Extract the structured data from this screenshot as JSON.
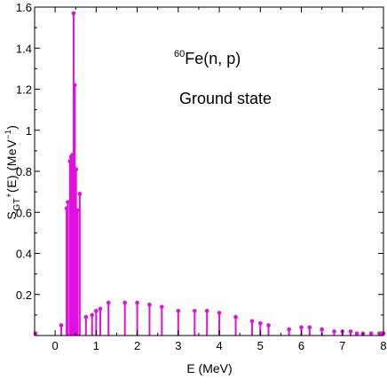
{
  "chart_data": {
    "type": "stem",
    "title": "",
    "annotation": {
      "isotope_mass": "60",
      "reaction": "Fe(n, p)",
      "state": "Ground state"
    },
    "xlabel": "E (MeV)",
    "ylabel_main": "S",
    "ylabel_sub": "GT",
    "ylabel_sup": "+",
    "ylabel_tail": "(E) (MeV",
    "ylabel_exp": "−1",
    "ylabel_end": ")",
    "xlim": [
      -0.5,
      8
    ],
    "ylim": [
      0,
      1.6
    ],
    "xticks": [
      0,
      1,
      2,
      3,
      4,
      5,
      6,
      7,
      8
    ],
    "xtick_labels": [
      "0",
      "1",
      "2",
      "3",
      "4",
      "5",
      "6",
      "7",
      "8"
    ],
    "yticks": [
      0.2,
      0.4,
      0.6,
      0.8,
      1.0,
      1.2,
      1.4,
      1.6
    ],
    "ytick_labels": [
      "0.2",
      "0.4",
      "0.6",
      "0.8",
      "1",
      "1.2",
      "1.4",
      "1.6"
    ],
    "color": "#e010e0",
    "series": [
      {
        "x": [
          -0.48,
          0.15,
          0.28,
          0.31,
          0.36,
          0.39,
          0.42,
          0.45,
          0.48,
          0.51,
          0.55,
          0.6,
          0.75,
          0.9,
          1.0,
          1.1,
          1.3,
          1.7,
          2.0,
          2.3,
          2.6,
          3.0,
          3.4,
          3.7,
          4.0,
          4.4,
          4.8,
          5.0,
          5.2,
          5.7,
          6.0,
          6.2,
          6.5,
          6.8,
          7.0,
          7.2,
          7.35,
          7.5,
          7.7,
          7.9,
          7.95,
          8.0
        ],
        "y": [
          0.01,
          0.05,
          0.62,
          0.65,
          0.85,
          0.87,
          0.88,
          1.57,
          1.22,
          0.81,
          0.61,
          0.69,
          0.09,
          0.1,
          0.12,
          0.13,
          0.16,
          0.16,
          0.16,
          0.15,
          0.14,
          0.12,
          0.12,
          0.12,
          0.11,
          0.09,
          0.07,
          0.06,
          0.05,
          0.03,
          0.04,
          0.04,
          0.03,
          0.02,
          0.02,
          0.02,
          0.01,
          0.01,
          0.01,
          0.01,
          0.01,
          0.01
        ]
      }
    ]
  }
}
